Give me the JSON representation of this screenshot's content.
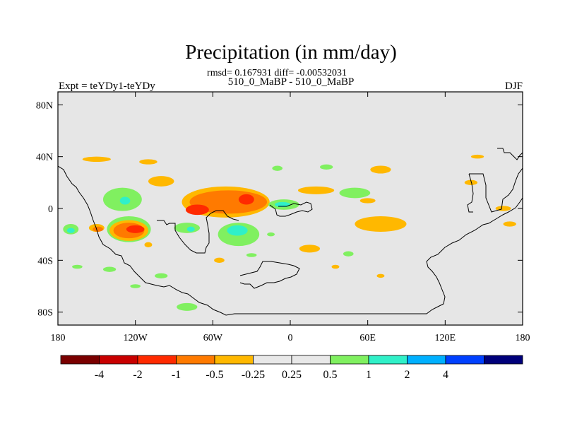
{
  "chart_data": {
    "type": "heatmap",
    "title": "Precipitation (in mm/day)",
    "stats_line": "rmsd= 0.167931 diff= -0.00532031",
    "subtitle": "510_0_MaBP - 510_0_MaBP",
    "left_label": "Expt = teYDy1-teYDy",
    "right_label": "DJF",
    "x_ticks": [
      {
        "value": -180,
        "label": "180"
      },
      {
        "value": -120,
        "label": "120W"
      },
      {
        "value": -60,
        "label": "60W"
      },
      {
        "value": 0,
        "label": "0"
      },
      {
        "value": 60,
        "label": "60E"
      },
      {
        "value": 120,
        "label": "120E"
      },
      {
        "value": 180,
        "label": "180"
      }
    ],
    "y_ticks": [
      {
        "value": 80,
        "label": "80N"
      },
      {
        "value": 40,
        "label": "40N"
      },
      {
        "value": 0,
        "label": "0"
      },
      {
        "value": -40,
        "label": "40S"
      },
      {
        "value": -80,
        "label": "80S"
      }
    ],
    "xlim": [
      -180,
      180
    ],
    "ylim": [
      -90,
      90
    ],
    "colorbar": {
      "colors": [
        "#7a0000",
        "#c80000",
        "#ff2a00",
        "#ff7a00",
        "#ffb800",
        "#e8e8e8",
        "#e8e8e8",
        "#80f060",
        "#30f0c8",
        "#00b0ff",
        "#0040ff",
        "#00007a"
      ],
      "labels": [
        "-4",
        "-2",
        "-1",
        "-0.5",
        "-0.25",
        "0.25",
        "0.5",
        "1",
        "2",
        "4"
      ]
    },
    "blobs": [
      {
        "lon": -170,
        "lat": -16,
        "rx": 6,
        "ry": 4,
        "color": "#80f060"
      },
      {
        "lon": -170,
        "lat": -17,
        "rx": 3,
        "ry": 2,
        "color": "#30f0c8"
      },
      {
        "lon": -150,
        "lat": -15,
        "rx": 6,
        "ry": 3,
        "color": "#ffb800"
      },
      {
        "lon": -149,
        "lat": -16,
        "rx": 4,
        "ry": 2,
        "color": "#ff7a00"
      },
      {
        "lon": -125,
        "lat": -16,
        "rx": 17,
        "ry": 10,
        "color": "#80f060"
      },
      {
        "lon": -125,
        "lat": -17,
        "rx": 15,
        "ry": 8,
        "color": "#ffb800"
      },
      {
        "lon": -125,
        "lat": -17,
        "rx": 12,
        "ry": 6,
        "color": "#ff7a00"
      },
      {
        "lon": -120,
        "lat": -16,
        "rx": 7,
        "ry": 3,
        "color": "#ff2a00"
      },
      {
        "lon": -130,
        "lat": 7,
        "rx": 15,
        "ry": 9,
        "color": "#80f060"
      },
      {
        "lon": -128,
        "lat": 6,
        "rx": 4,
        "ry": 3,
        "color": "#30f0c8"
      },
      {
        "lon": -150,
        "lat": 38,
        "rx": 11,
        "ry": 2,
        "color": "#ffb800"
      },
      {
        "lon": -110,
        "lat": 36,
        "rx": 7,
        "ry": 2,
        "color": "#ffb800"
      },
      {
        "lon": -100,
        "lat": 21,
        "rx": 10,
        "ry": 4,
        "color": "#ffb800"
      },
      {
        "lon": -50,
        "lat": 5,
        "rx": 34,
        "ry": 12,
        "color": "#ffb800"
      },
      {
        "lon": -48,
        "lat": 5,
        "rx": 30,
        "ry": 9,
        "color": "#ff7a00"
      },
      {
        "lon": -72,
        "lat": -1,
        "rx": 9,
        "ry": 4,
        "color": "#ff2a00"
      },
      {
        "lon": -34,
        "lat": 7,
        "rx": 6,
        "ry": 4,
        "color": "#ff2a00"
      },
      {
        "lon": -40,
        "lat": -20,
        "rx": 16,
        "ry": 9,
        "color": "#80f060"
      },
      {
        "lon": -41,
        "lat": -17,
        "rx": 8,
        "ry": 4,
        "color": "#30f0c8"
      },
      {
        "lon": -80,
        "lat": -15,
        "rx": 10,
        "ry": 4,
        "color": "#80f060"
      },
      {
        "lon": -77,
        "lat": -16,
        "rx": 3,
        "ry": 2,
        "color": "#30f0c8"
      },
      {
        "lon": -5,
        "lat": 3,
        "rx": 12,
        "ry": 4,
        "color": "#80f060"
      },
      {
        "lon": -6,
        "lat": 3,
        "rx": 6,
        "ry": 2,
        "color": "#30f0c8"
      },
      {
        "lon": -10,
        "lat": 31,
        "rx": 4,
        "ry": 2,
        "color": "#80f060"
      },
      {
        "lon": 28,
        "lat": 32,
        "rx": 5,
        "ry": 2,
        "color": "#80f060"
      },
      {
        "lon": 70,
        "lat": 30,
        "rx": 8,
        "ry": 3,
        "color": "#ffb800"
      },
      {
        "lon": 20,
        "lat": 14,
        "rx": 14,
        "ry": 3,
        "color": "#ffb800"
      },
      {
        "lon": 50,
        "lat": 12,
        "rx": 12,
        "ry": 4,
        "color": "#80f060"
      },
      {
        "lon": 70,
        "lat": -12,
        "rx": 20,
        "ry": 6,
        "color": "#ffb800"
      },
      {
        "lon": 15,
        "lat": -31,
        "rx": 8,
        "ry": 3,
        "color": "#ffb800"
      },
      {
        "lon": 60,
        "lat": 6,
        "rx": 6,
        "ry": 2,
        "color": "#ffb800"
      },
      {
        "lon": 140,
        "lat": 20,
        "rx": 5,
        "ry": 2,
        "color": "#ffb800"
      },
      {
        "lon": 165,
        "lat": 0,
        "rx": 6,
        "ry": 2,
        "color": "#ffb800"
      },
      {
        "lon": 170,
        "lat": -12,
        "rx": 5,
        "ry": 2,
        "color": "#ffb800"
      },
      {
        "lon": 145,
        "lat": 40,
        "rx": 5,
        "ry": 1.5,
        "color": "#ffb800"
      },
      {
        "lon": -165,
        "lat": -45,
        "rx": 4,
        "ry": 1.5,
        "color": "#80f060"
      },
      {
        "lon": -140,
        "lat": -47,
        "rx": 5,
        "ry": 2,
        "color": "#80f060"
      },
      {
        "lon": -100,
        "lat": -52,
        "rx": 5,
        "ry": 2,
        "color": "#80f060"
      },
      {
        "lon": -120,
        "lat": -60,
        "rx": 4,
        "ry": 1.5,
        "color": "#80f060"
      },
      {
        "lon": -80,
        "lat": -76,
        "rx": 8,
        "ry": 3,
        "color": "#80f060"
      },
      {
        "lon": -30,
        "lat": -36,
        "rx": 4,
        "ry": 1.5,
        "color": "#80f060"
      },
      {
        "lon": 45,
        "lat": -35,
        "rx": 4,
        "ry": 2,
        "color": "#80f060"
      },
      {
        "lon": 35,
        "lat": -45,
        "rx": 3,
        "ry": 1.5,
        "color": "#ffb800"
      },
      {
        "lon": 70,
        "lat": -52,
        "rx": 3,
        "ry": 1.5,
        "color": "#ffb800"
      },
      {
        "lon": -110,
        "lat": -28,
        "rx": 3,
        "ry": 2,
        "color": "#ffb800"
      },
      {
        "lon": -55,
        "lat": -40,
        "rx": 4,
        "ry": 2,
        "color": "#ffb800"
      },
      {
        "lon": -15,
        "lat": -20,
        "rx": 3,
        "ry": 1.5,
        "color": "#80f060"
      }
    ]
  }
}
